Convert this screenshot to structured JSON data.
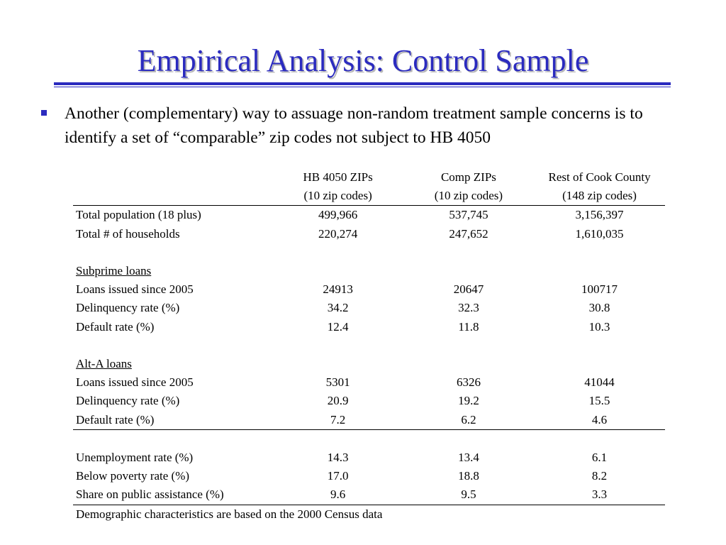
{
  "title": "Empirical Analysis: Control Sample",
  "bullet": "Another (complementary) way to assuage non-random treatment sample concerns is to identify a set of “comparable” zip codes not subject to HB 4050",
  "table": {
    "columns": [
      {
        "line1": "HB 4050 ZIPs",
        "line2": "(10 zip codes)"
      },
      {
        "line1": "Comp ZIPs",
        "line2": "(10 zip codes)"
      },
      {
        "line1": "Rest of Cook County",
        "line2": "(148 zip codes)"
      }
    ],
    "population": {
      "label": "Total population (18 plus)",
      "values": [
        "499,966",
        "537,745",
        "3,156,397"
      ]
    },
    "households": {
      "label": "Total # of households",
      "values": [
        "220,274",
        "247,652",
        "1,610,035"
      ]
    },
    "subprime": {
      "heading": "Subprime loans",
      "loans": {
        "label": "Loans issued since 2005",
        "values": [
          "24913",
          "20647",
          "100717"
        ]
      },
      "delinquency": {
        "label": "Delinquency rate (%)",
        "values": [
          "34.2",
          "32.3",
          "30.8"
        ]
      },
      "default": {
        "label": "Default rate (%)",
        "values": [
          "12.4",
          "11.8",
          "10.3"
        ]
      }
    },
    "alta": {
      "heading": "Alt-A loans",
      "loans": {
        "label": "Loans issued since 2005",
        "values": [
          "5301",
          "6326",
          "41044"
        ]
      },
      "delinquency": {
        "label": "Delinquency rate (%)",
        "values": [
          "20.9",
          "19.2",
          "15.5"
        ]
      },
      "default": {
        "label": "Default rate (%)",
        "values": [
          "7.2",
          "6.2",
          "4.6"
        ]
      }
    },
    "unemployment": {
      "label": "Unemployment rate (%)",
      "values": [
        "14.3",
        "13.4",
        "6.1"
      ]
    },
    "poverty": {
      "label": "Below poverty rate (%)",
      "values": [
        "17.0",
        "18.8",
        "8.2"
      ]
    },
    "assistance": {
      "label": "Share on public assistance (%)",
      "values": [
        "9.6",
        "9.5",
        "3.3"
      ]
    },
    "note": "Demographic characteristics are based on the 2000 Census data"
  },
  "colors": {
    "title": "#2b2bbf",
    "accent": "#2b2bbf"
  },
  "icons": {
    "bullet": "square-bullet-icon"
  }
}
